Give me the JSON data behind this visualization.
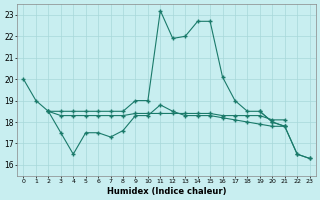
{
  "xlabel": "Humidex (Indice chaleur)",
  "color": "#1a7a6a",
  "bg_color": "#c8eef0",
  "grid_color": "#a8d8da",
  "ylim": [
    15.5,
    23.5
  ],
  "xlim": [
    -0.5,
    23.5
  ],
  "series": [
    [
      20,
      19,
      18.5,
      18.5,
      18.5,
      18.5,
      18.5,
      18.5,
      18.5,
      19.0,
      19.0,
      23.2,
      21.9,
      22.0,
      22.7,
      22.7,
      20.1,
      19.0,
      18.5,
      18.5,
      18.0,
      17.8,
      16.5,
      16.3
    ],
    [
      null,
      null,
      18.5,
      17.5,
      16.5,
      17.5,
      17.5,
      17.3,
      17.6,
      18.3,
      18.3,
      18.8,
      18.5,
      18.3,
      18.3,
      18.3,
      18.2,
      18.1,
      18.0,
      17.9,
      17.8,
      17.8,
      null,
      null
    ],
    [
      null,
      null,
      18.5,
      18.3,
      18.3,
      18.3,
      18.3,
      18.3,
      18.3,
      18.4,
      18.4,
      18.4,
      18.4,
      18.4,
      18.4,
      18.4,
      18.3,
      18.3,
      18.3,
      18.3,
      18.1,
      18.1,
      null,
      null
    ],
    [
      null,
      null,
      null,
      null,
      null,
      null,
      null,
      null,
      null,
      null,
      null,
      null,
      null,
      null,
      null,
      null,
      null,
      null,
      null,
      18.5,
      18.0,
      17.8,
      16.5,
      16.3
    ]
  ],
  "x": [
    0,
    1,
    2,
    3,
    4,
    5,
    6,
    7,
    8,
    9,
    10,
    11,
    12,
    13,
    14,
    15,
    16,
    17,
    18,
    19,
    20,
    21,
    22,
    23
  ],
  "marker": "+",
  "markersize": 3,
  "linewidth": 0.8
}
